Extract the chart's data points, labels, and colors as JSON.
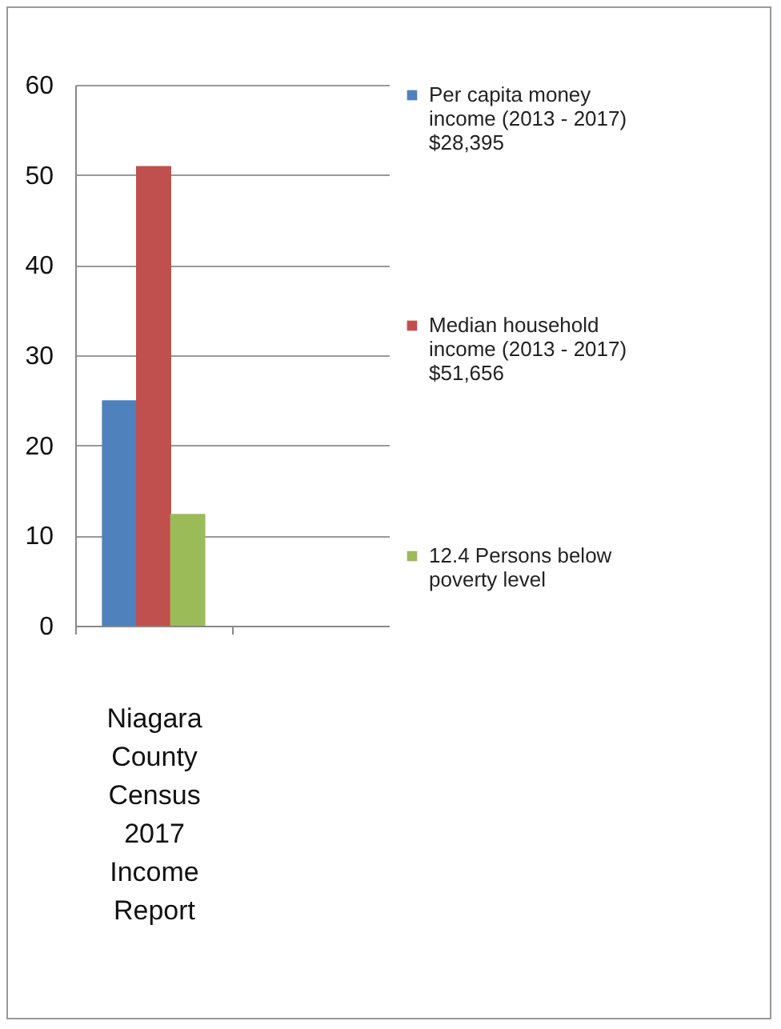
{
  "chart_data": {
    "type": "bar",
    "categories": [
      "Niagara County Census 2017 Income Report"
    ],
    "series": [
      {
        "name": "Per capita money income (2013 - 2017) $28,395",
        "color": "#4f81bd",
        "values": [
          25
        ]
      },
      {
        "name": "Median household income (2013 - 2017) $51,656",
        "color": "#c0504d",
        "values": [
          51
        ]
      },
      {
        "name": "12.4 Persons below poverty level",
        "color": "#9bbb59",
        "values": [
          12.4
        ]
      }
    ],
    "ylim": [
      0,
      60
    ],
    "yticks": [
      0,
      10,
      20,
      30,
      40,
      50,
      60
    ],
    "grid": "y",
    "legend": "right"
  }
}
